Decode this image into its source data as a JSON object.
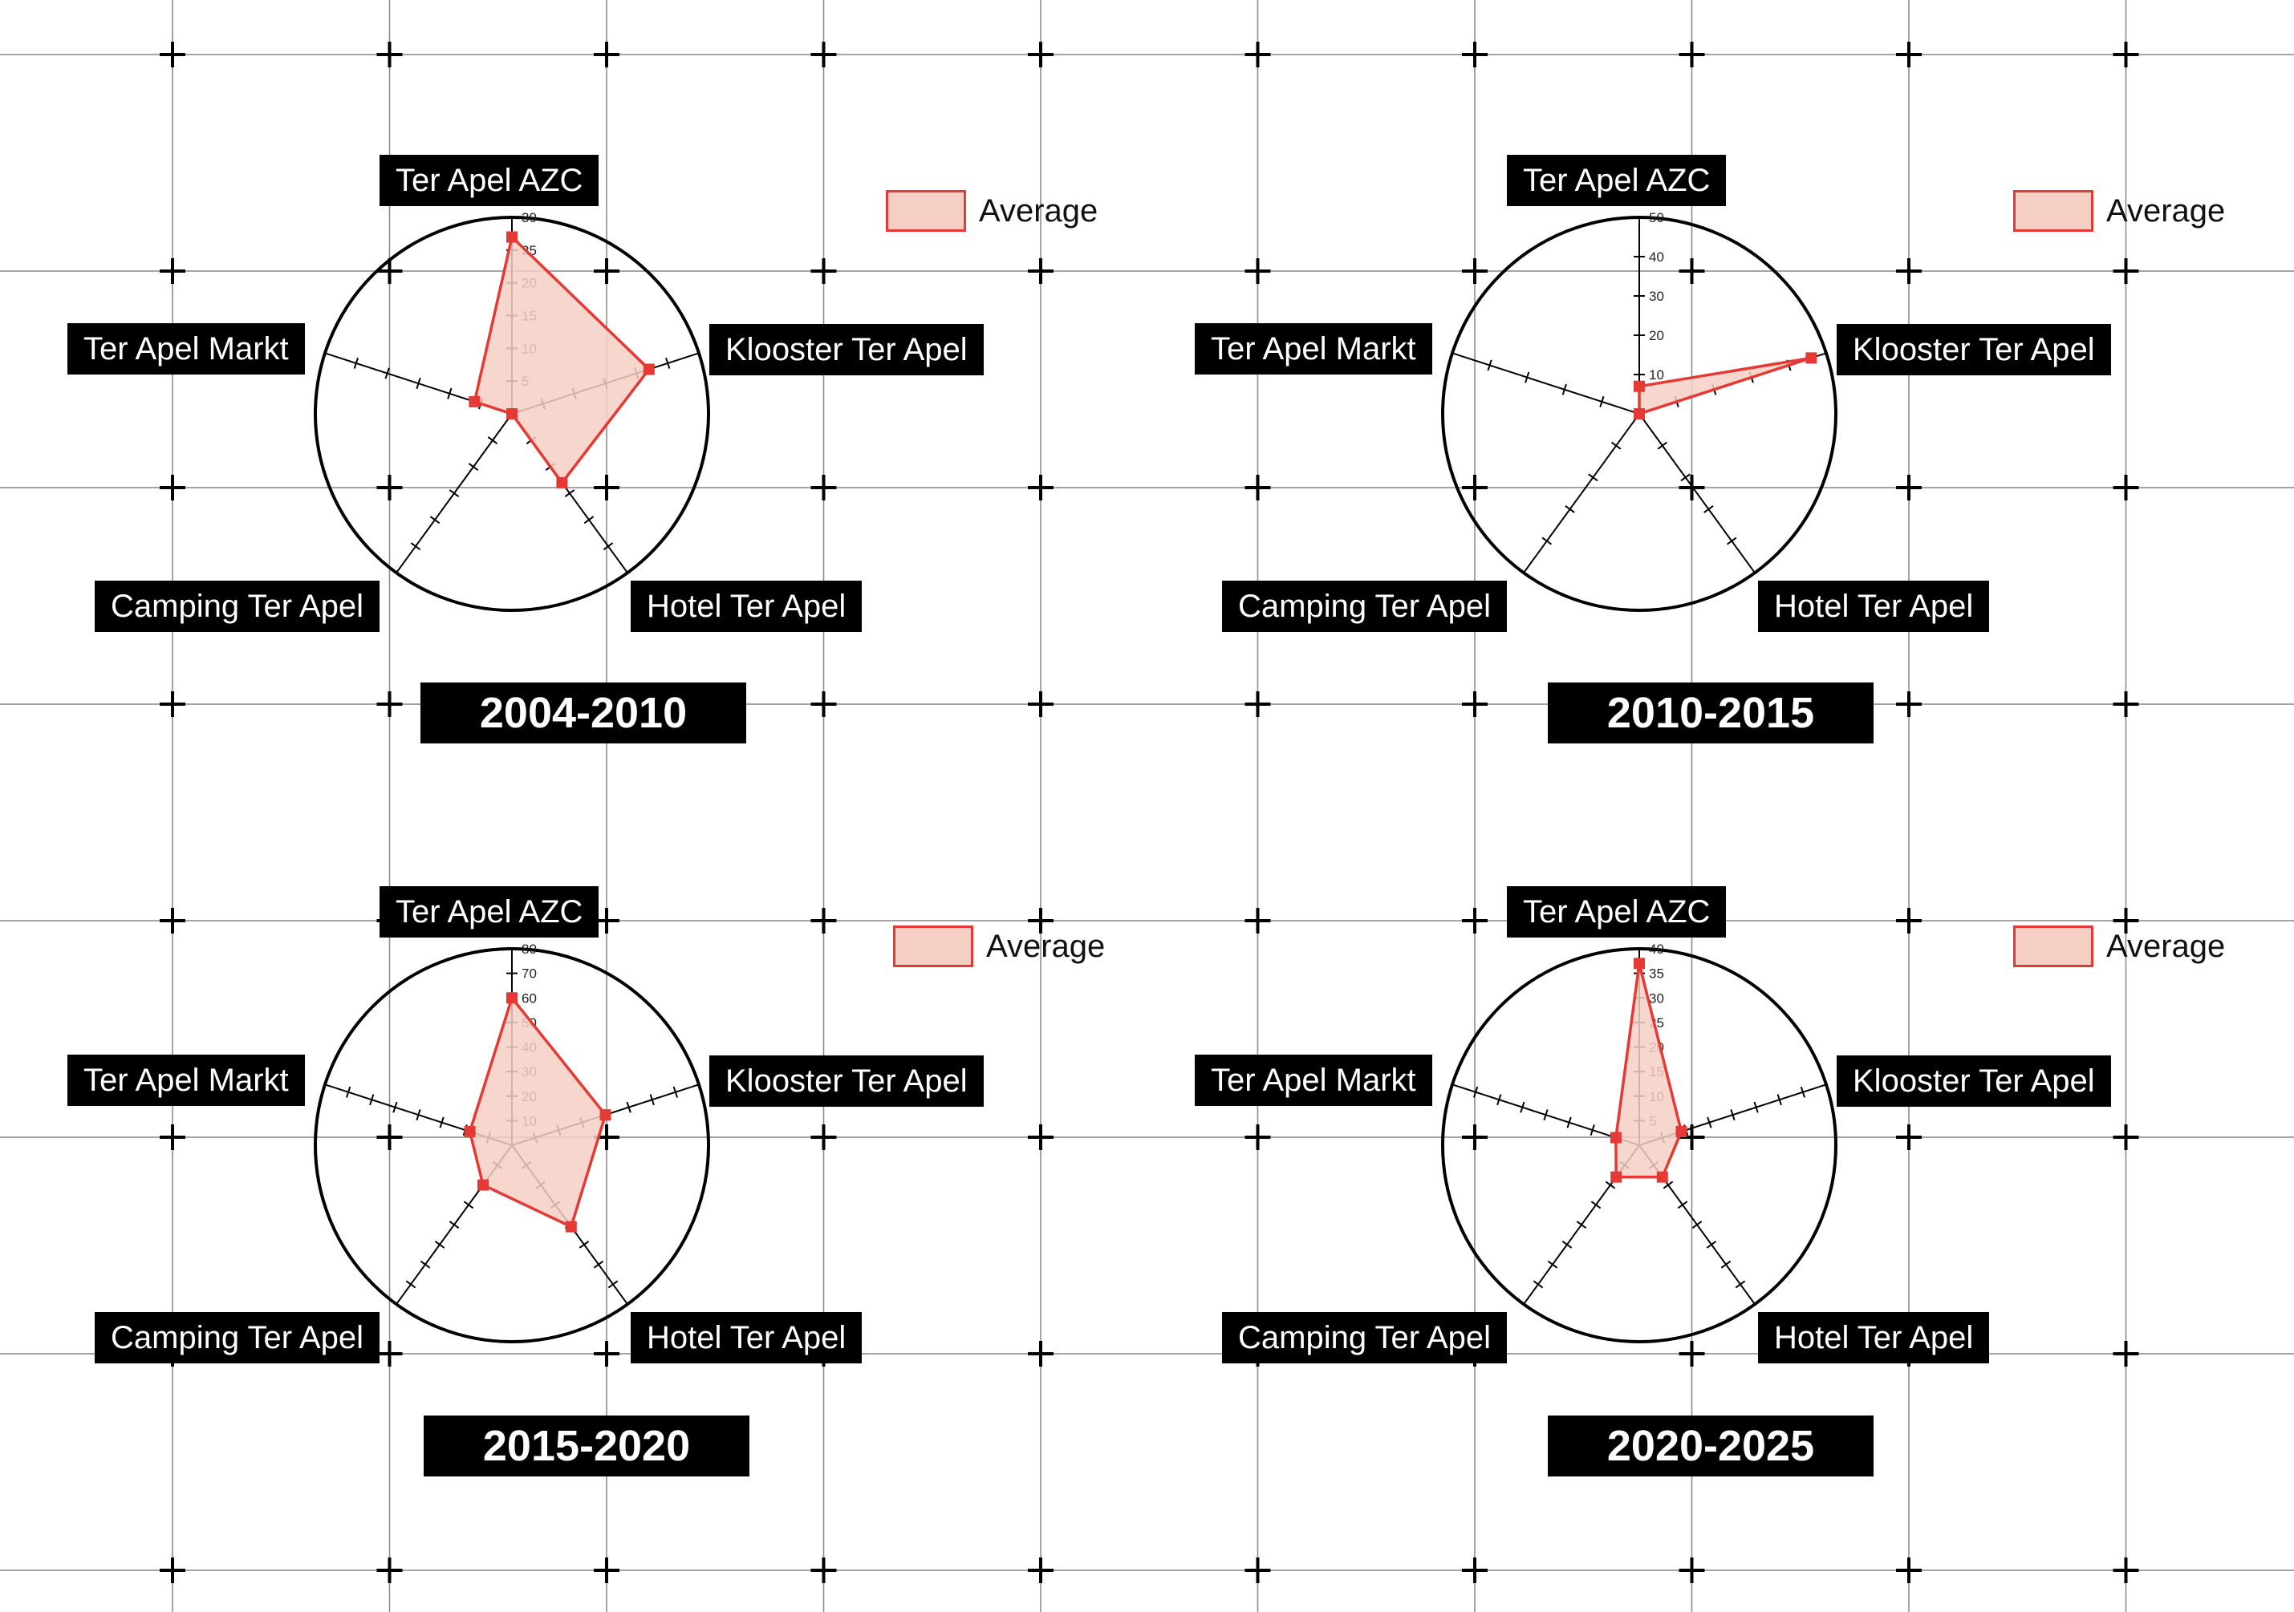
{
  "legend": {
    "label": "Average"
  },
  "colors": {
    "stroke": "#e53935",
    "fill": "#f6cfc4",
    "background": "#ffffff",
    "grid": "#555555",
    "label_bg": "#000000",
    "label_fg": "#ffffff"
  },
  "chart_data": [
    {
      "type": "radar",
      "title": "2004-2010",
      "categories": [
        "Ter Apel AZC",
        "Klooster Ter Apel",
        "Hotel Ter Apel",
        "Camping Ter Apel",
        "Ter Apel Markt"
      ],
      "rmax": 30,
      "ticks": [
        5,
        10,
        15,
        20,
        25,
        30
      ],
      "series": [
        {
          "name": "Average",
          "values": [
            27,
            22,
            13,
            0,
            6
          ]
        }
      ]
    },
    {
      "type": "radar",
      "title": "2010-2015",
      "categories": [
        "Ter Apel AZC",
        "Klooster Ter Apel",
        "Hotel Ter Apel",
        "Camping Ter Apel",
        "Ter Apel Markt"
      ],
      "rmax": 50,
      "ticks": [
        10,
        20,
        30,
        40,
        50
      ],
      "series": [
        {
          "name": "Average",
          "values": [
            7,
            46,
            0,
            0,
            0
          ]
        }
      ]
    },
    {
      "type": "radar",
      "title": "2015-2020",
      "categories": [
        "Ter Apel AZC",
        "Klooster Ter Apel",
        "Hotel Ter Apel",
        "Camping Ter Apel",
        "Ter Apel Markt"
      ],
      "rmax": 80,
      "ticks": [
        10,
        20,
        30,
        40,
        50,
        60,
        70,
        80
      ],
      "series": [
        {
          "name": "Average",
          "values": [
            60,
            40,
            41,
            20,
            18
          ]
        }
      ]
    },
    {
      "type": "radar",
      "title": "2020-2025",
      "categories": [
        "Ter Apel AZC",
        "Klooster Ter Apel",
        "Hotel Ter Apel",
        "Camping Ter Apel",
        "Ter Apel Markt"
      ],
      "rmax": 40,
      "ticks": [
        5,
        10,
        15,
        20,
        25,
        30,
        35,
        40
      ],
      "series": [
        {
          "name": "Average",
          "values": [
            37,
            9,
            8,
            8,
            5
          ]
        }
      ]
    }
  ]
}
